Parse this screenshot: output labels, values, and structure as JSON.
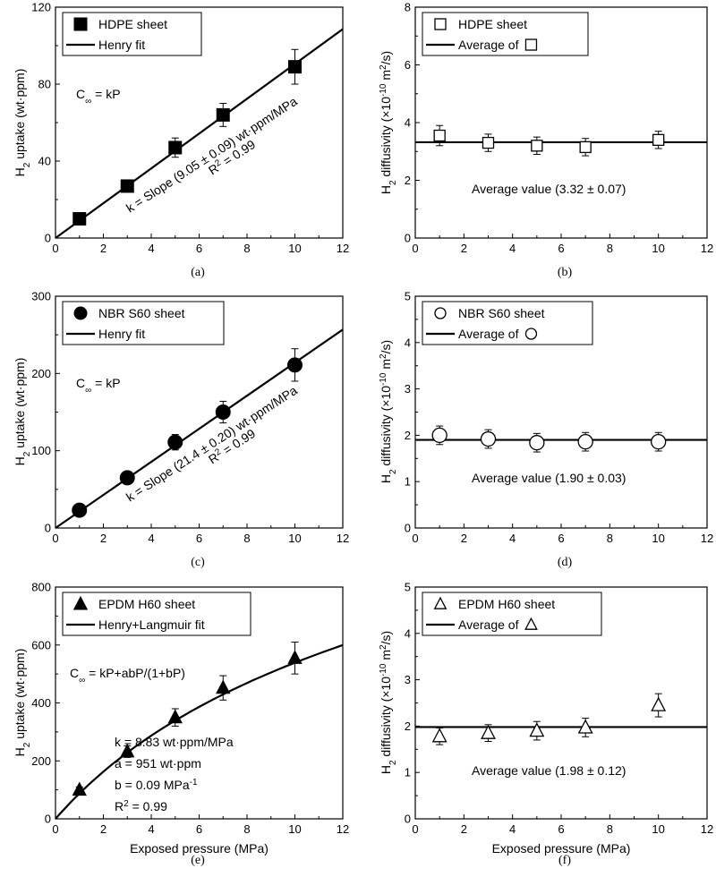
{
  "panels": [
    {
      "id": "a",
      "panel_label": "(a)",
      "legend": {
        "marker_label": "HDPE sheet",
        "line_label": "Henry fit"
      },
      "annotations": {
        "equation": "C∞ = kP",
        "slope_prefix": "k = Slope (9.05 ",
        "slope_suffix": " 0.09) wt·ppm/MPa",
        "r2": "R² = 0.99"
      }
    },
    {
      "id": "b",
      "panel_label": "(b)",
      "legend": {
        "marker_label": "HDPE sheet",
        "line_label": "Average of"
      },
      "annotations": {
        "average_prefix": "Average value (3.32 ",
        "average_suffix": " 0.07)"
      }
    },
    {
      "id": "c",
      "panel_label": "(c)",
      "legend": {
        "marker_label": "NBR S60 sheet",
        "line_label": "Henry fit"
      },
      "annotations": {
        "equation": "C∞ = kP",
        "slope_prefix": "k = Slope (21.4 ",
        "slope_suffix": " 0.20) wt·ppm/MPa",
        "r2": "R² = 0.99"
      }
    },
    {
      "id": "d",
      "panel_label": "(d)",
      "legend": {
        "marker_label": "NBR S60 sheet",
        "line_label": "Average of"
      },
      "annotations": {
        "average_prefix": "Average value (1.90 ",
        "average_suffix": " 0.03)"
      }
    },
    {
      "id": "e",
      "panel_label": "(e)",
      "legend": {
        "marker_label": "EPDM H60 sheet",
        "line_label": "Henry+Langmuir fit"
      },
      "annotations": {
        "equation": "C∞ = kP+abP/(1+bP)",
        "k": "k = 8.83 wt·ppm/MPa",
        "a": "a = 951 wt·ppm",
        "b": "b = 0.09 MPa⁻¹",
        "r2": "R² = 0.99"
      }
    },
    {
      "id": "f",
      "panel_label": "(f)",
      "legend": {
        "marker_label": "EPDM H60 sheet",
        "line_label": "Average of"
      },
      "annotations": {
        "average_prefix": "Average value (1.98 ",
        "average_suffix": " 0.12)"
      }
    }
  ],
  "chart_data": [
    {
      "id": "a",
      "type": "scatter",
      "title": "",
      "xlabel": "",
      "ylabel": "H2 uptake (wt·ppm)",
      "xlim": [
        0,
        12
      ],
      "ylim": [
        0,
        120
      ],
      "xticks": [
        0,
        2,
        4,
        6,
        8,
        10,
        12
      ],
      "yticks": [
        0,
        40,
        80,
        120
      ],
      "series": [
        {
          "name": "HDPE sheet",
          "marker": "square",
          "filled": true,
          "x": [
            1,
            3,
            5,
            7,
            10
          ],
          "y": [
            10,
            27,
            47,
            64,
            89
          ],
          "err": [
            2,
            2,
            5,
            6,
            9
          ]
        }
      ],
      "fit": {
        "name": "Henry fit",
        "type": "linear",
        "slope": 9.05,
        "x_range": [
          0,
          12
        ]
      }
    },
    {
      "id": "b",
      "type": "scatter",
      "title": "",
      "xlabel": "",
      "ylabel": "H2 diffusivity (×10^-10 m2/s)",
      "xlim": [
        0,
        12
      ],
      "ylim": [
        0,
        8
      ],
      "xticks": [
        0,
        2,
        4,
        6,
        8,
        10,
        12
      ],
      "yticks": [
        0,
        2,
        4,
        6,
        8
      ],
      "series": [
        {
          "name": "HDPE sheet",
          "marker": "square",
          "filled": false,
          "x": [
            1,
            3,
            5,
            7,
            10
          ],
          "y": [
            3.55,
            3.3,
            3.2,
            3.15,
            3.4
          ],
          "err": [
            0.35,
            0.3,
            0.3,
            0.3,
            0.3
          ]
        }
      ],
      "fit": {
        "name": "Average",
        "type": "constant",
        "value": 3.32,
        "x_range": [
          0,
          12
        ]
      }
    },
    {
      "id": "c",
      "type": "scatter",
      "title": "",
      "xlabel": "",
      "ylabel": "H2 uptake (wt·ppm)",
      "xlim": [
        0,
        12
      ],
      "ylim": [
        0,
        300
      ],
      "xticks": [
        0,
        2,
        4,
        6,
        8,
        10,
        12
      ],
      "yticks": [
        0,
        100,
        200,
        300
      ],
      "series": [
        {
          "name": "NBR S60 sheet",
          "marker": "circle",
          "filled": true,
          "x": [
            1,
            3,
            5,
            7,
            10
          ],
          "y": [
            23,
            65,
            111,
            150,
            211
          ],
          "err": [
            3,
            5,
            10,
            14,
            21
          ]
        }
      ],
      "fit": {
        "name": "Henry fit",
        "type": "linear",
        "slope": 21.4,
        "x_range": [
          0,
          12
        ]
      }
    },
    {
      "id": "d",
      "type": "scatter",
      "title": "",
      "xlabel": "",
      "ylabel": "H2 diffusivity (×10^-10 m2/s)",
      "xlim": [
        0,
        12
      ],
      "ylim": [
        0,
        5
      ],
      "xticks": [
        0,
        2,
        4,
        6,
        8,
        10,
        12
      ],
      "yticks": [
        0,
        1,
        2,
        3,
        4,
        5
      ],
      "series": [
        {
          "name": "NBR S60 sheet",
          "marker": "circle",
          "filled": false,
          "x": [
            1,
            3,
            5,
            7,
            10
          ],
          "y": [
            2.0,
            1.92,
            1.84,
            1.86,
            1.86
          ],
          "err": [
            0.2,
            0.2,
            0.2,
            0.2,
            0.2
          ]
        }
      ],
      "fit": {
        "name": "Average",
        "type": "constant",
        "value": 1.9,
        "x_range": [
          0,
          12
        ]
      }
    },
    {
      "id": "e",
      "type": "scatter",
      "title": "",
      "xlabel": "Exposed pressure (MPa)",
      "ylabel": "H2 uptake (wt·ppm)",
      "xlim": [
        0,
        12
      ],
      "ylim": [
        0,
        800
      ],
      "xticks": [
        0,
        2,
        4,
        6,
        8,
        10,
        12
      ],
      "yticks": [
        0,
        200,
        400,
        600,
        800
      ],
      "series": [
        {
          "name": "EPDM H60 sheet",
          "marker": "triangle",
          "filled": true,
          "x": [
            1,
            3,
            5,
            7,
            10
          ],
          "y": [
            100,
            232,
            350,
            452,
            555
          ],
          "err": [
            10,
            20,
            30,
            42,
            55
          ]
        }
      ],
      "fit": {
        "name": "Henry+Langmuir fit",
        "type": "henry_langmuir",
        "k": 8.83,
        "a": 951,
        "b": 0.09,
        "x_range": [
          0,
          12
        ]
      }
    },
    {
      "id": "f",
      "type": "scatter",
      "title": "",
      "xlabel": "Exposed pressure (MPa)",
      "ylabel": "H2 diffusivity (×10^-10 m2/s)",
      "xlim": [
        0,
        12
      ],
      "ylim": [
        0,
        5
      ],
      "xticks": [
        0,
        2,
        4,
        6,
        8,
        10,
        12
      ],
      "yticks": [
        0,
        1,
        2,
        3,
        4,
        5
      ],
      "series": [
        {
          "name": "EPDM H60 sheet",
          "marker": "triangle",
          "filled": false,
          "x": [
            1,
            3,
            5,
            7,
            10
          ],
          "y": [
            1.78,
            1.85,
            1.9,
            1.97,
            2.45
          ],
          "err": [
            0.18,
            0.18,
            0.2,
            0.2,
            0.25
          ]
        }
      ],
      "fit": {
        "name": "Average",
        "type": "constant",
        "value": 1.98,
        "x_range": [
          0,
          12
        ]
      }
    }
  ]
}
